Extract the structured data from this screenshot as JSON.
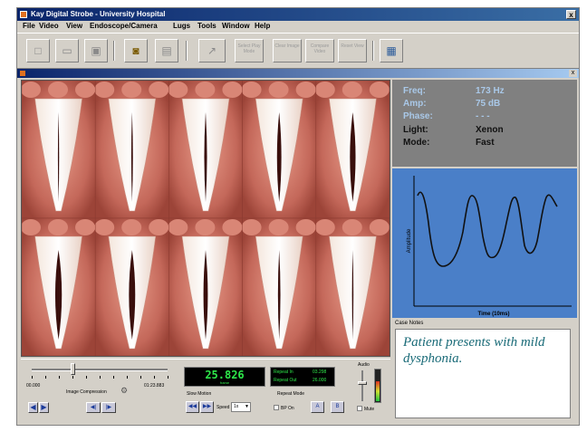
{
  "window": {
    "title": "Kay Digital Strobe - University Hospital",
    "close_glyph": "x",
    "child_close_glyph": "x"
  },
  "menu": [
    "File",
    "Video",
    "View",
    "Endoscope/Camera",
    "Lugs",
    "Tools",
    "Window",
    "Help"
  ],
  "toolbar": {
    "buttons": [
      {
        "id": "new",
        "icon": "new-document-icon",
        "glyph": "□"
      },
      {
        "id": "open",
        "icon": "open-folder-icon",
        "glyph": "▭"
      },
      {
        "id": "save",
        "icon": "save-disk-icon",
        "glyph": "▣"
      },
      {
        "id": "camera",
        "icon": "camera-icon",
        "glyph": "◙",
        "active": true
      },
      {
        "id": "print",
        "icon": "print-icon",
        "glyph": "▤"
      }
    ],
    "wide_buttons": [
      {
        "id": "export",
        "label": "",
        "glyph": "↗"
      },
      {
        "id": "select-play",
        "label": "Select Play Mode",
        "glyph": ""
      },
      {
        "id": "clear-image",
        "label": "Clear Image",
        "glyph": "⇄"
      },
      {
        "id": "compare",
        "label": "Compare Video",
        "glyph": "◂"
      },
      {
        "id": "reset-view",
        "label": "Reset View",
        "glyph": "◆"
      },
      {
        "id": "window",
        "label": "",
        "glyph": "▦"
      }
    ]
  },
  "info": {
    "freq_label": "Freq:",
    "freq_value": "173 Hz",
    "amp_label": "Amp:",
    "amp_value": "75 dB",
    "phase_label": "Phase:",
    "phase_value": "- - -",
    "light_label": "Light:",
    "light_value": "Xenon",
    "mode_label": "Mode:",
    "mode_value": "Fast"
  },
  "graph": {
    "ylabel": "Amplitude",
    "xlabel": "Time (10ms)"
  },
  "notes": {
    "label": "Case Notes",
    "text": "Patient presents with mild dysphonia."
  },
  "controls": {
    "time_start": "00.000",
    "time_end": "01:23.883",
    "compression_label": "Image Compression",
    "timecode": "25.826",
    "timecode_sub": "frame",
    "repeat_in_label": "Repeat In",
    "repeat_in_value": "03.298",
    "repeat_out_label": "Repeat Out",
    "repeat_out_value": "26.000",
    "slow_motion_label": "Slow Motion",
    "speed_label": "Speed",
    "speed_value": "1x",
    "repeat_mode_label": "Repeat Mode",
    "bp_on_label": "BP On",
    "audio_label": "Audio",
    "audio_level": 0.65,
    "slider_position": 0.3,
    "mute_label": "Mute",
    "buttons": {
      "step_back": "◀",
      "play": "▶",
      "frame_back": "◀|",
      "frame_fwd": "|▶",
      "slow_rew": "◀◀",
      "slow_fwd": "▶▶",
      "repeat_a": "A",
      "repeat_b": "B"
    }
  },
  "colors": {
    "info_highlight": "#a9c8e8",
    "graph_bg": "#4a7fc8",
    "notes_text": "#1a6b78",
    "titlebar": "#0a246a"
  }
}
